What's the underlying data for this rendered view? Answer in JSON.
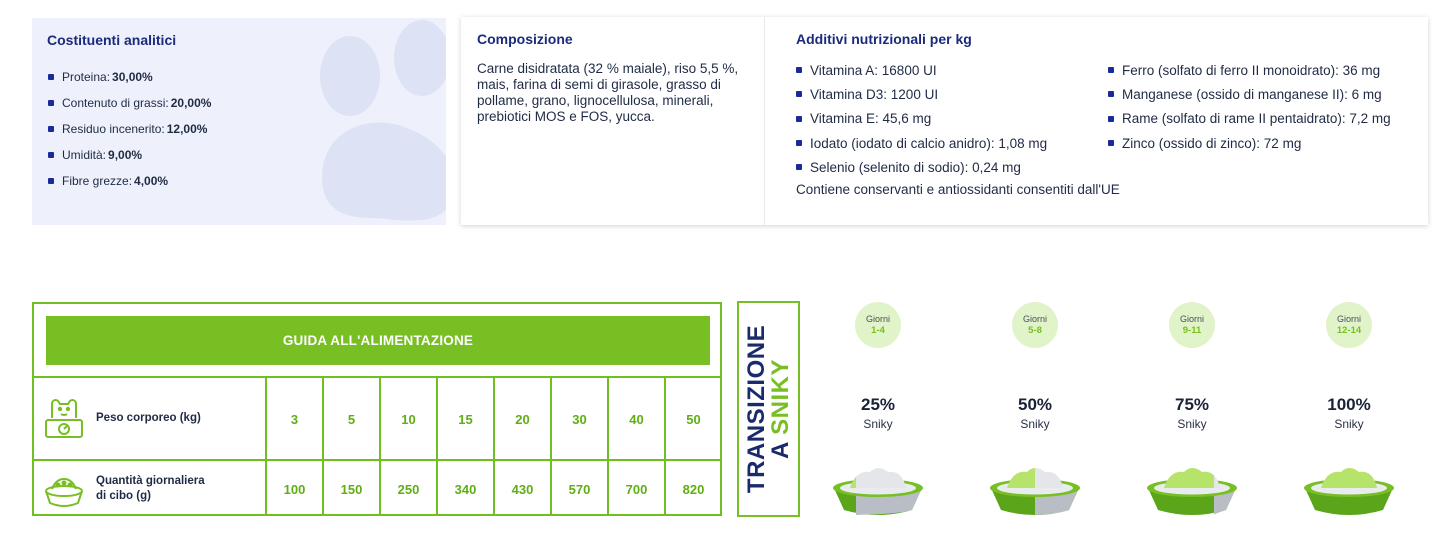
{
  "analytic": {
    "title": "Costituenti analitici",
    "items": [
      {
        "label": "Proteina:",
        "value": "30,00%"
      },
      {
        "label": "Contenuto di grassi:",
        "value": "20,00%"
      },
      {
        "label": "Residuo incenerito:",
        "value": "12,00%"
      },
      {
        "label": "Umidità:",
        "value": "9,00%"
      },
      {
        "label": "Fibre grezze:",
        "value": "4,00%"
      }
    ]
  },
  "composition": {
    "title": "Composizione",
    "text": "Carne disidratata (32 % maiale), riso 5,5 %, mais, farina di semi di girasole, grasso di pollame, grano, lignocellulosa, minerali, prebiotici MOS e FOS, yucca."
  },
  "additives": {
    "title": "Additivi nutrizionali per kg",
    "col1": [
      "Vitamina A: 16800 UI",
      "Vitamina D3: 1200 UI",
      "Vitamina E: 45,6 mg",
      "Iodato (iodato di calcio anidro): 1,08 mg",
      "Selenio (selenito di sodio): 0,24 mg"
    ],
    "col2": [
      "Ferro (solfato di ferro II monoidrato): 36 mg",
      "Manganese (ossido di manganese II): 6 mg",
      "Rame (solfato di rame II pentaidrato): 7,2 mg",
      "Zinco (ossido di zinco): 72 mg"
    ],
    "note": "Contiene conservanti e antiossidanti consentiti dall'UE"
  },
  "feeding": {
    "title": "GUIDA ALL'ALIMENTAZIONE",
    "row1_label": "Peso corporeo (kg)",
    "row2_label_line1": "Quantità giornaliera",
    "row2_label_line2": "di cibo (g)",
    "weights": [
      "3",
      "5",
      "10",
      "15",
      "20",
      "30",
      "40",
      "50"
    ],
    "amounts": [
      "100",
      "150",
      "250",
      "340",
      "430",
      "570",
      "700",
      "820"
    ]
  },
  "transition": {
    "line1": "TRANSIZIONE",
    "line2_prefix": "A ",
    "line2_brand": "SNIKY",
    "steps": [
      {
        "days_label": "Giorni",
        "days": "1-4",
        "percent": "25%",
        "brand": "Sniky",
        "fill": 0.25
      },
      {
        "days_label": "Giorni",
        "days": "5-8",
        "percent": "50%",
        "brand": "Sniky",
        "fill": 0.5
      },
      {
        "days_label": "Giorni",
        "days": "9-11",
        "percent": "75%",
        "brand": "Sniky",
        "fill": 0.75
      },
      {
        "days_label": "Giorni",
        "days": "12-14",
        "percent": "100%",
        "brand": "Sniky",
        "fill": 1.0
      }
    ]
  },
  "colors": {
    "green": "#77bf22",
    "navy": "#1a2a7c",
    "light_green": "#e1f3c8"
  }
}
